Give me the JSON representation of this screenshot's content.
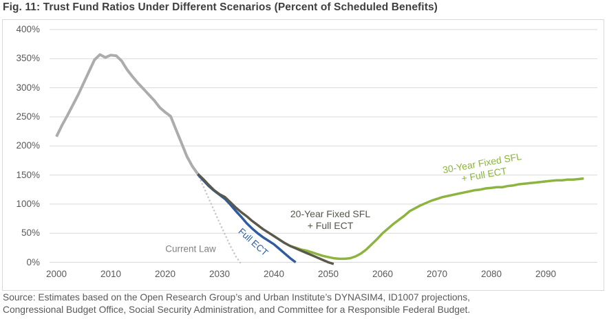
{
  "title": "Fig. 11: Trust Fund Ratios Under Different Scenarios (Percent of Scheduled Benefits)",
  "source": {
    "line1": "Source: Estimates based on the Open Research Group’s and Urban Institute’s DYNASIM4, ID1007 projections,",
    "line2": "Congressional Budget Office, Social Security Administration, and Committee for a Responsible Federal Budget."
  },
  "annotations": {
    "current_law": "Current Law",
    "full_ect": "Full ECT",
    "twenty_year_line1": "20-Year Fixed SFL",
    "twenty_year_line2": "+ Full ECT",
    "thirty_year_line1": "30-Year Fixed SFL",
    "thirty_year_line2": "+ Full ECT"
  },
  "colors": {
    "historical_line": "#acacac",
    "current_law_line": "#c8c8c8",
    "full_ect_line": "#2e5c9e",
    "twenty_year_line": "#5a594a",
    "thirty_year_line": "#8cb43f",
    "gridline": "#d9d9d9",
    "axis_text": "#595959",
    "title_text": "#3f3f3f"
  },
  "chart_data": {
    "type": "line",
    "title": "Trust Fund Ratios Under Different Scenarios",
    "ylabel": "Percent of Scheduled Benefits",
    "ylim": [
      0,
      400
    ],
    "xlim": [
      2000,
      2098
    ],
    "grid": true,
    "legend_position": "inline-labels",
    "y_ticks": [
      {
        "label": "400%",
        "value": 400
      },
      {
        "label": "350%",
        "value": 350
      },
      {
        "label": "300%",
        "value": 300
      },
      {
        "label": "250%",
        "value": 250
      },
      {
        "label": "200%",
        "value": 200
      },
      {
        "label": "150%",
        "value": 150
      },
      {
        "label": "100%",
        "value": 100
      },
      {
        "label": "50%",
        "value": 50
      },
      {
        "label": "0%",
        "value": 0
      }
    ],
    "x_ticks": [
      {
        "label": "2000",
        "value": 2000
      },
      {
        "label": "2010",
        "value": 2010
      },
      {
        "label": "2020",
        "value": 2020
      },
      {
        "label": "2030",
        "value": 2030
      },
      {
        "label": "2040",
        "value": 2040
      },
      {
        "label": "2050",
        "value": 2050
      },
      {
        "label": "2060",
        "value": 2060
      },
      {
        "label": "2070",
        "value": 2070
      },
      {
        "label": "2080",
        "value": 2080
      },
      {
        "label": "2090",
        "value": 2090
      }
    ],
    "series": [
      {
        "name": "Historical trust fund ratio (all scenarios, 2000–2026)",
        "colorKey": "historical_line",
        "width": 4,
        "dashed": false,
        "points": [
          [
            2000,
            216
          ],
          [
            2001,
            235
          ],
          [
            2002,
            252
          ],
          [
            2003,
            270
          ],
          [
            2004,
            288
          ],
          [
            2005,
            308
          ],
          [
            2006,
            328
          ],
          [
            2007,
            348
          ],
          [
            2008,
            357
          ],
          [
            2009,
            352
          ],
          [
            2010,
            356
          ],
          [
            2011,
            355
          ],
          [
            2012,
            346
          ],
          [
            2013,
            331
          ],
          [
            2014,
            319
          ],
          [
            2015,
            308
          ],
          [
            2016,
            298
          ],
          [
            2017,
            288
          ],
          [
            2018,
            278
          ],
          [
            2019,
            266
          ],
          [
            2020,
            258
          ],
          [
            2021,
            251
          ],
          [
            2022,
            228
          ],
          [
            2023,
            205
          ],
          [
            2024,
            182
          ],
          [
            2025,
            165
          ],
          [
            2026,
            152
          ]
        ]
      },
      {
        "name": "Current Law",
        "colorKey": "current_law_line",
        "width": 2.6,
        "dashed": true,
        "points": [
          [
            2026,
            152
          ],
          [
            2027,
            131
          ],
          [
            2028,
            110
          ],
          [
            2029,
            89
          ],
          [
            2030,
            68
          ],
          [
            2031,
            48
          ],
          [
            2032,
            28
          ],
          [
            2033,
            10
          ],
          [
            2034,
            -3
          ]
        ]
      },
      {
        "name": "Full ECT",
        "colorKey": "full_ect_line",
        "width": 3.5,
        "dashed": false,
        "points": [
          [
            2026,
            151
          ],
          [
            2027,
            141
          ],
          [
            2028,
            131
          ],
          [
            2029,
            123
          ],
          [
            2030,
            116
          ],
          [
            2031,
            109
          ],
          [
            2032,
            99
          ],
          [
            2033,
            88
          ],
          [
            2034,
            78
          ],
          [
            2035,
            67
          ],
          [
            2036,
            58
          ],
          [
            2037,
            50
          ],
          [
            2038,
            43
          ],
          [
            2039,
            37
          ],
          [
            2040,
            31
          ],
          [
            2041,
            23
          ],
          [
            2042,
            15
          ],
          [
            2043,
            7
          ],
          [
            2044,
            0
          ]
        ]
      },
      {
        "name": "30-Year Fixed SFL + Full ECT",
        "colorKey": "thirty_year_line",
        "width": 3.5,
        "dashed": false,
        "points": [
          [
            2043,
            28
          ],
          [
            2044,
            25
          ],
          [
            2045,
            22
          ],
          [
            2046,
            20
          ],
          [
            2047,
            17
          ],
          [
            2048,
            14
          ],
          [
            2049,
            11
          ],
          [
            2050,
            9
          ],
          [
            2051,
            7
          ],
          [
            2052,
            6
          ],
          [
            2053,
            6
          ],
          [
            2054,
            7
          ],
          [
            2055,
            10
          ],
          [
            2056,
            15
          ],
          [
            2057,
            22
          ],
          [
            2058,
            31
          ],
          [
            2059,
            40
          ],
          [
            2060,
            50
          ],
          [
            2061,
            58
          ],
          [
            2062,
            66
          ],
          [
            2063,
            73
          ],
          [
            2064,
            80
          ],
          [
            2065,
            88
          ],
          [
            2066,
            93
          ],
          [
            2067,
            98
          ],
          [
            2068,
            102
          ],
          [
            2069,
            106
          ],
          [
            2070,
            109
          ],
          [
            2071,
            112
          ],
          [
            2072,
            114
          ],
          [
            2073,
            116
          ],
          [
            2074,
            118
          ],
          [
            2075,
            120
          ],
          [
            2076,
            122
          ],
          [
            2077,
            124
          ],
          [
            2078,
            125
          ],
          [
            2079,
            127
          ],
          [
            2080,
            128
          ],
          [
            2081,
            129
          ],
          [
            2082,
            129
          ],
          [
            2083,
            131
          ],
          [
            2084,
            132
          ],
          [
            2085,
            134
          ],
          [
            2086,
            135
          ],
          [
            2087,
            136
          ],
          [
            2088,
            137
          ],
          [
            2089,
            138
          ],
          [
            2090,
            139
          ],
          [
            2091,
            140
          ],
          [
            2092,
            141
          ],
          [
            2093,
            141
          ],
          [
            2094,
            142
          ],
          [
            2095,
            142
          ],
          [
            2096,
            143
          ],
          [
            2097,
            144
          ]
        ]
      },
      {
        "name": "20-Year Fixed SFL + Full ECT",
        "colorKey": "twenty_year_line",
        "width": 3.5,
        "dashed": false,
        "points": [
          [
            2026,
            152
          ],
          [
            2027,
            143
          ],
          [
            2028,
            133
          ],
          [
            2029,
            124
          ],
          [
            2030,
            117
          ],
          [
            2031,
            112
          ],
          [
            2032,
            103
          ],
          [
            2033,
            94
          ],
          [
            2034,
            86
          ],
          [
            2035,
            79
          ],
          [
            2036,
            71
          ],
          [
            2037,
            64
          ],
          [
            2038,
            57
          ],
          [
            2039,
            51
          ],
          [
            2040,
            45
          ],
          [
            2041,
            39
          ],
          [
            2042,
            33
          ],
          [
            2043,
            28
          ],
          [
            2044,
            24
          ],
          [
            2045,
            20
          ],
          [
            2046,
            16
          ],
          [
            2047,
            12
          ],
          [
            2048,
            8
          ],
          [
            2049,
            4
          ],
          [
            2050,
            0
          ],
          [
            2051,
            -3
          ]
        ]
      }
    ]
  }
}
